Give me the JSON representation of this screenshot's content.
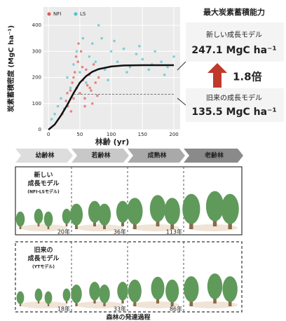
{
  "chart_data": {
    "type": "scatter",
    "xlabel": "林齢 (yr)",
    "ylabel": "炭素蓄積密度 (MgC ha⁻¹)",
    "xlim": [
      -8,
      210
    ],
    "ylim": [
      0,
      470
    ],
    "xticks": [
      0,
      50,
      100,
      150,
      200
    ],
    "yticks": [
      0,
      100,
      200,
      300,
      400
    ],
    "grid": true,
    "legend": "top-left",
    "series": [
      {
        "name": "NFI",
        "color": "#e25858",
        "x": [
          22,
          28,
          31,
          35,
          38,
          40,
          42,
          45,
          47,
          50,
          52,
          55,
          58,
          60,
          62,
          65,
          68,
          70,
          72,
          75,
          78,
          80,
          36,
          44,
          54,
          66,
          48,
          58,
          30,
          40
        ],
        "values": [
          60,
          110,
          90,
          150,
          180,
          120,
          220,
          160,
          260,
          140,
          300,
          190,
          120,
          230,
          170,
          210,
          150,
          100,
          250,
          180,
          130,
          200,
          70,
          280,
          240,
          160,
          330,
          90,
          140,
          200
        ]
      },
      {
        "name": "LS",
        "color": "#4cc3cb",
        "x": [
          5,
          10,
          15,
          20,
          25,
          30,
          35,
          40,
          45,
          50,
          55,
          60,
          65,
          70,
          75,
          80,
          90,
          100,
          110,
          120,
          130,
          140,
          150,
          160,
          170,
          180,
          190,
          200,
          85,
          95,
          105,
          125,
          145,
          165,
          185
        ],
        "values": [
          40,
          60,
          90,
          120,
          80,
          200,
          160,
          250,
          300,
          220,
          350,
          180,
          280,
          330,
          260,
          400,
          230,
          300,
          260,
          310,
          240,
          290,
          270,
          230,
          300,
          260,
          240,
          280,
          350,
          190,
          340,
          220,
          320,
          250,
          210
        ]
      }
    ],
    "lines": [
      {
        "color": "#111111",
        "dash": false,
        "x": [
          0,
          10,
          20,
          30,
          40,
          50,
          60,
          70,
          80,
          100,
          120,
          150,
          200
        ],
        "values": [
          0,
          20,
          55,
          95,
          140,
          180,
          205,
          222,
          232,
          242,
          246,
          247,
          247.1
        ]
      },
      {
        "color": "#777777",
        "dash": true,
        "x": [
          40,
          200
        ],
        "values": [
          135.5,
          135.5
        ]
      }
    ]
  },
  "panel": {
    "title": "最大炭素蓄積能力",
    "new_label": "新しい成長モデル",
    "new_value": "247.1 MgC ha⁻¹",
    "ratio": "1.8倍",
    "old_label": "旧来の成長モデル",
    "old_value": "135.5 MgC ha⁻¹"
  },
  "diagram": {
    "stages": [
      "幼齢林",
      "若齢林",
      "成熟林",
      "老齢林"
    ],
    "rows": [
      {
        "label": [
          "新しい",
          "成長モデル",
          "(NFI-LSモデル)"
        ],
        "ages": [
          "20年",
          "36年",
          "113年"
        ]
      },
      {
        "label": [
          "旧来の",
          "成長モデル",
          "(YTモデル)"
        ],
        "ages": [
          "18年",
          "33年",
          "86年"
        ]
      }
    ],
    "caption": "森林の発達過程"
  }
}
